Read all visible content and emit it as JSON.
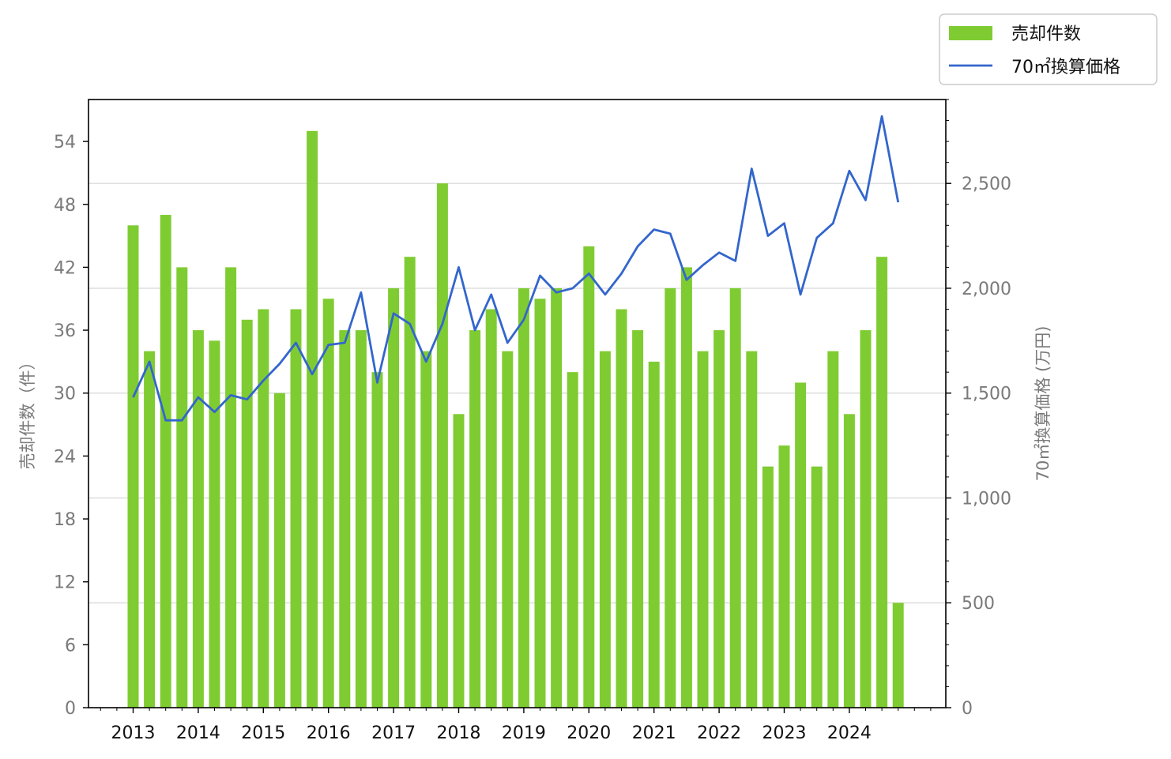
{
  "chart_data": {
    "type": "bar+line",
    "title": "",
    "xlabel": "",
    "ylabel_left": "売却件数（件）",
    "ylabel_right": "70㎡換算価格 (万円)",
    "x_tick_labels": [
      "2013",
      "2014",
      "2015",
      "2016",
      "2017",
      "2018",
      "2019",
      "2020",
      "2021",
      "2022",
      "2023",
      "2024"
    ],
    "x_start_year": 2013,
    "periods_per_year": 4,
    "ylim_left": [
      0,
      58
    ],
    "yticks_left": [
      0,
      6,
      12,
      18,
      24,
      30,
      36,
      42,
      48,
      54
    ],
    "ylim_right": [
      0,
      2900
    ],
    "yticks_right": [
      0,
      500,
      1000,
      1500,
      2000,
      2500
    ],
    "yticks_right_labels": [
      "0",
      "500",
      "1,000",
      "1,500",
      "2,000",
      "2,500"
    ],
    "grid": "horizontal at right-axis ticks",
    "legend_position": "top-right, outside plot",
    "series": [
      {
        "name": "売却件数",
        "type": "bar",
        "axis": "left",
        "color": "#7fcc32",
        "values": [
          46,
          34,
          47,
          42,
          36,
          35,
          42,
          37,
          38,
          30,
          38,
          55,
          39,
          36,
          36,
          32,
          40,
          43,
          34,
          50,
          28,
          36,
          38,
          34,
          40,
          39,
          40,
          32,
          44,
          34,
          38,
          36,
          33,
          40,
          42,
          34,
          36,
          40,
          34,
          23,
          25,
          31,
          23,
          34,
          28,
          36,
          43,
          10
        ]
      },
      {
        "name": "70㎡換算価格",
        "type": "line",
        "axis": "right",
        "color": "#3366cc",
        "values": [
          1480,
          1650,
          1370,
          1370,
          1480,
          1410,
          1490,
          1470,
          1560,
          1640,
          1740,
          1590,
          1730,
          1740,
          1980,
          1550,
          1880,
          1830,
          1650,
          1830,
          2100,
          1800,
          1970,
          1740,
          1850,
          2060,
          1980,
          2000,
          2070,
          1970,
          2070,
          2200,
          2280,
          2260,
          2040,
          2110,
          2170,
          2130,
          2570,
          2250,
          2310,
          1970,
          2240,
          2310,
          2560,
          2420,
          2820,
          2410
        ]
      }
    ]
  }
}
